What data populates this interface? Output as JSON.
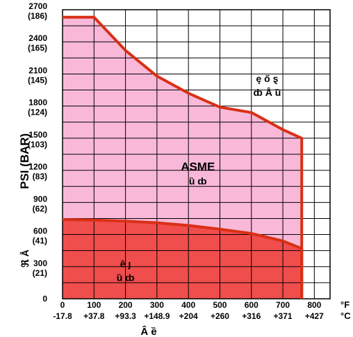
{
  "chart_data": {
    "type": "area",
    "title": "",
    "ylabel": "PSI (BAR)",
    "ylabel_glyphs": "ℜ Å",
    "xlabel_glyphs": "Â ȅ",
    "xlim": [
      0,
      800
    ],
    "ylim": [
      0,
      2700
    ],
    "x_unit_top": "°F",
    "x_unit_bottom": "°C",
    "x_ticks": [
      {
        "value": 0,
        "f": "0",
        "c": "-17.8"
      },
      {
        "value": 100,
        "f": "100",
        "c": "+37.8"
      },
      {
        "value": 200,
        "f": "200",
        "c": "+93.3"
      },
      {
        "value": 300,
        "f": "300",
        "c": "+148.9"
      },
      {
        "value": 400,
        "f": "400",
        "c": "+204"
      },
      {
        "value": 500,
        "f": "500",
        "c": "+260"
      },
      {
        "value": 600,
        "f": "600",
        "c": "+316"
      },
      {
        "value": 700,
        "f": "700",
        "c": "+371"
      },
      {
        "value": 800,
        "f": "800",
        "c": "+427"
      }
    ],
    "y_ticks": [
      {
        "value": 0,
        "psi": "0",
        "bar": ""
      },
      {
        "value": 300,
        "psi": "300",
        "bar": "(21)"
      },
      {
        "value": 600,
        "psi": "600",
        "bar": "(41)"
      },
      {
        "value": 900,
        "psi": "900",
        "bar": "(62)"
      },
      {
        "value": 1200,
        "psi": "1200",
        "bar": "(83)"
      },
      {
        "value": 1500,
        "psi": "1500",
        "bar": "(103)"
      },
      {
        "value": 1800,
        "psi": "1800",
        "bar": "(124)"
      },
      {
        "value": 2100,
        "psi": "2100",
        "bar": "(145)"
      },
      {
        "value": 2400,
        "psi": "2400",
        "bar": "(165)"
      },
      {
        "value": 2700,
        "psi": "2700",
        "bar": "(186)"
      }
    ],
    "series": [
      {
        "name": "ASME",
        "color": "#f9b8d8",
        "line_color": "#d93015",
        "x": [
          0,
          100,
          200,
          300,
          400,
          500,
          600,
          700,
          760,
          760
        ],
        "y": [
          2630,
          2630,
          2320,
          2080,
          1920,
          1790,
          1740,
          1580,
          1500,
          0
        ]
      },
      {
        "name": "",
        "color": "#f04d4d",
        "line_color": "#d93015",
        "x": [
          0,
          100,
          200,
          300,
          400,
          500,
          600,
          700,
          760,
          760
        ],
        "y": [
          740,
          735,
          725,
          710,
          685,
          650,
          610,
          540,
          470,
          0
        ]
      }
    ],
    "annotations": [
      {
        "id": "upper",
        "lines": [
          "ȩ ő ȿ",
          "ȸ Å ȕ"
        ],
        "x": 650,
        "y": 2000
      },
      {
        "id": "asme",
        "lines": [
          "ASME",
          "ȕ ȸ"
        ],
        "x": 430,
        "y": 1170
      },
      {
        "id": "lower",
        "lines": [
          "ȇ ȷ",
          "ȕ ȸ"
        ],
        "x": 200,
        "y": 270
      }
    ],
    "grid": true
  }
}
